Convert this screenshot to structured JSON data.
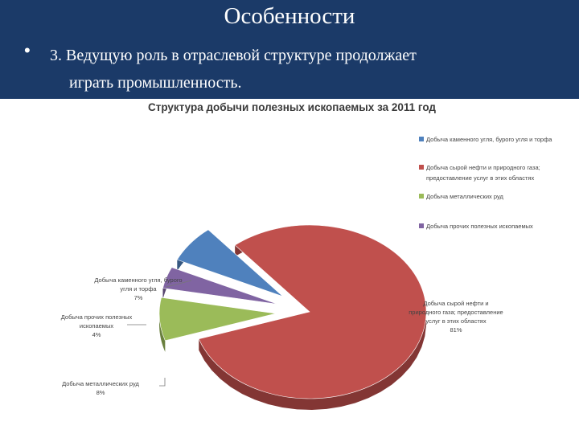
{
  "slide": {
    "title": "Особенности",
    "bullet_marker": "•",
    "bullet_line1": "3. Ведущую роль в отраслевой структуре продолжает",
    "bullet_line2": "играть промышленность."
  },
  "chart_data": {
    "type": "pie",
    "title": "Структура добычи полезных ископаемых за 2011 год",
    "legend_position": "right",
    "series": [
      {
        "name": "Добыча каменного угля, бурого угля и торфа",
        "label_lines": [
          "Добыча каменного угля, бурого",
          "угля и торфа",
          "7%"
        ],
        "value": 7,
        "color": "#4f81bd"
      },
      {
        "name": "Добыча сырой нефти и природного газа; предоставление услуг в этих областях",
        "legend_lines": [
          "Добыча сырой нефти и природного газа;",
          "предоставление услуг в этих областях"
        ],
        "label_lines": [
          "Добыча сырой нефти и",
          "природного газа; предоставление",
          "услуг в этих областях",
          "81%"
        ],
        "value": 81,
        "color": "#c0504d"
      },
      {
        "name": "Добыча металлических руд",
        "label_lines": [
          "Добыча металлических руд",
          "8%"
        ],
        "value": 8,
        "color": "#9bbb59"
      },
      {
        "name": "Добыча прочих полезных ископаемых",
        "label_lines": [
          "Добыча прочих полезных",
          "ископаемых",
          "4%"
        ],
        "value": 4,
        "color": "#8064a2"
      }
    ],
    "legend_display": [
      "Добыча каменного угля, бурого угля и торфа",
      "Добыча сырой нефти и природного газа;",
      "предоставление услуг в этих областях",
      "Добыча металлических руд",
      "Добыча прочих полезных ископаемых"
    ]
  }
}
